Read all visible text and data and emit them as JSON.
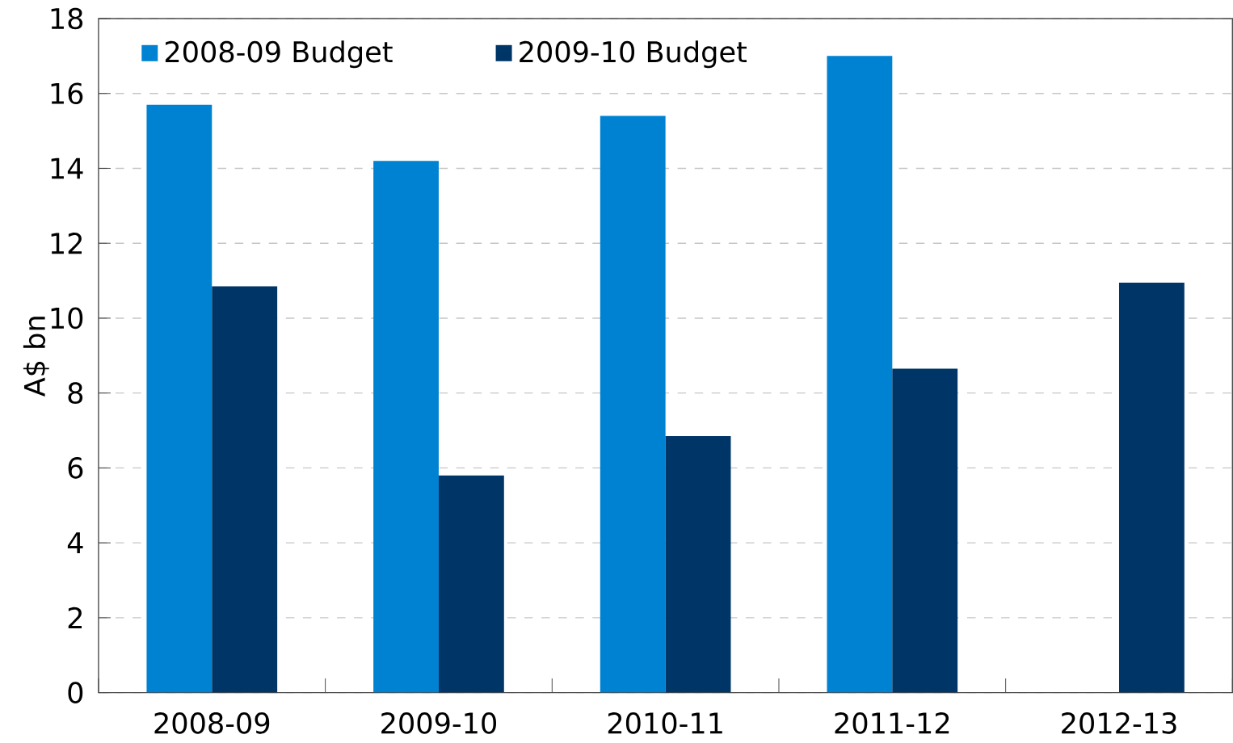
{
  "chart_data": {
    "type": "bar",
    "ylabel": "A$ bn",
    "categories": [
      "2008-09",
      "2009-10",
      "2010-11",
      "2011-12",
      "2012-13"
    ],
    "series": [
      {
        "name": "2008-09 Budget",
        "color": "#0082d2",
        "values": [
          15.7,
          14.2,
          15.4,
          17.0,
          null
        ]
      },
      {
        "name": "2009-10 Budget",
        "color": "#003667",
        "values": [
          10.85,
          5.8,
          6.85,
          8.65,
          10.95
        ]
      }
    ],
    "ylim": [
      0,
      18
    ],
    "yticks": [
      0,
      2,
      4,
      6,
      8,
      10,
      12,
      14,
      16,
      18
    ],
    "grid": "y",
    "legend": "top left"
  }
}
